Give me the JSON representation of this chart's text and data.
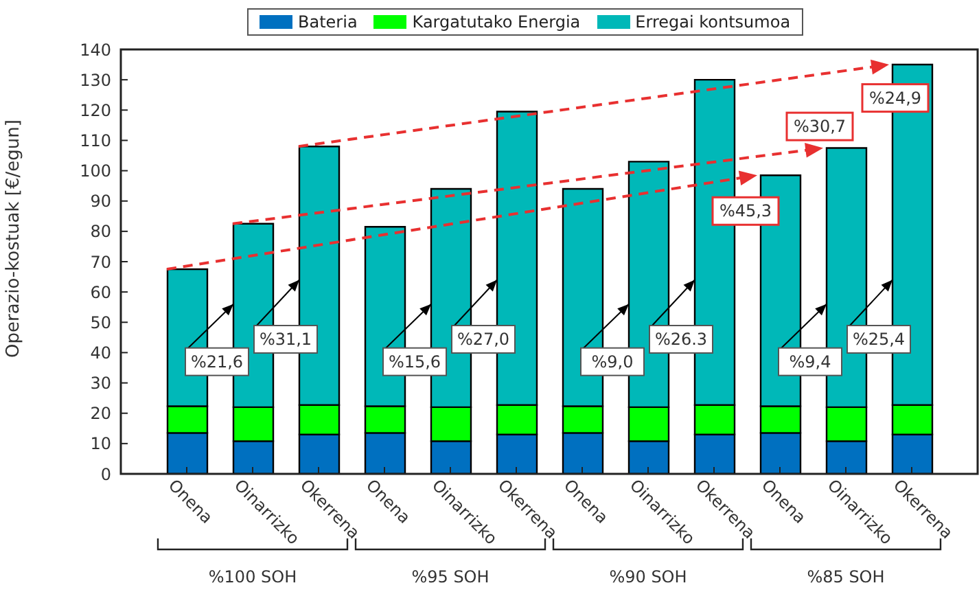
{
  "chart_data": {
    "type": "bar",
    "stacked": true,
    "ylabel": "Operazio-kostuak [€/egun]",
    "categories": [
      "Onena",
      "Oinarrizko",
      "Okerrena",
      "Onena",
      "Oinarrizko",
      "Okerrena",
      "Onena",
      "Oinarrizko",
      "Okerrena",
      "Onena",
      "Oinarrizko",
      "Okerrena"
    ],
    "series": [
      {
        "name": "Bateria",
        "color": "#0070c0",
        "values": [
          13.5,
          10.8,
          13,
          13.5,
          10.8,
          13,
          13.5,
          10.8,
          13,
          13.5,
          10.8,
          13
        ]
      },
      {
        "name": "Kargatutako Energia",
        "color": "#00ff00",
        "values": [
          8.8,
          11.2,
          9.7,
          8.8,
          11.2,
          9.7,
          8.8,
          11.2,
          9.7,
          8.8,
          11.2,
          9.7
        ]
      },
      {
        "name": "Erregai kontsumoa",
        "color": "#00b8b8",
        "values": [
          45.2,
          60.5,
          85.3,
          59.2,
          72,
          96.8,
          71.7,
          81,
          107.3,
          76.2,
          85.5,
          112.3
        ]
      }
    ],
    "ylim": [
      0,
      140
    ],
    "yticks": [
      0,
      10,
      20,
      30,
      40,
      50,
      60,
      70,
      80,
      90,
      100,
      110,
      120,
      130,
      140
    ],
    "legend": "top",
    "grid": false,
    "annotations": [
      "%21,6",
      "%31,1",
      "%15,6",
      "%27,0",
      "%9,0",
      "%26.3",
      "%9,4",
      "%25,4",
      "%45,3",
      "%30,7",
      "%24,9",
      "%100 SOH",
      "%95 SOH",
      "%90 SOH",
      "%85 SOH"
    ]
  }
}
